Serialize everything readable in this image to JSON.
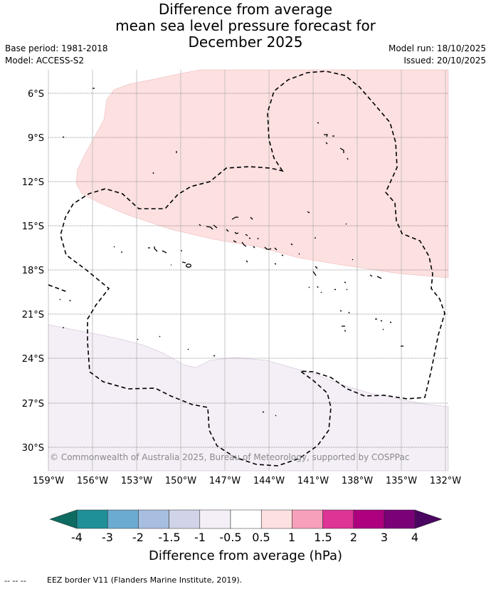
{
  "title": {
    "line1": "Difference from average",
    "line2": "mean sea level pressure forecast for",
    "line3": "December 2025"
  },
  "meta": {
    "base_period": "Base period: 1981-2018",
    "model": "Model: ACCESS-S2",
    "model_run": "Model run: 18/10/2025",
    "issued": "Issued: 20/10/2025"
  },
  "map": {
    "lat_labels": [
      "6°S",
      "9°S",
      "12°S",
      "15°S",
      "18°S",
      "21°S",
      "24°S",
      "27°S",
      "30°S"
    ],
    "lon_labels": [
      "159°W",
      "156°W",
      "153°W",
      "150°W",
      "147°W",
      "144°W",
      "141°W",
      "138°W",
      "135°W",
      "132°W"
    ],
    "copyright": "© Commonwealth of Australia 2025, Bureau of Meteorology, supported by COSPPac"
  },
  "colorbar": {
    "title": "Difference from average (hPa)",
    "tick_labels": [
      "-4",
      "-3",
      "-2",
      "-1.5",
      "-1",
      "-0.5",
      "0.5",
      "1",
      "1.5",
      "2",
      "3",
      "4"
    ],
    "colors": [
      "#0e6b62",
      "#1f9096",
      "#6cabd1",
      "#a7bee0",
      "#d1d3e8",
      "#f4eef6",
      "#ffffff",
      "#fde0e0",
      "#f7a0bb",
      "#dd3496",
      "#ad0180",
      "#7a0178",
      "#4a0660"
    ]
  },
  "footer": {
    "legend_marker": "--  --  --",
    "text": "EEZ border V11 (Flanders Marine Institute, 2019)."
  }
}
